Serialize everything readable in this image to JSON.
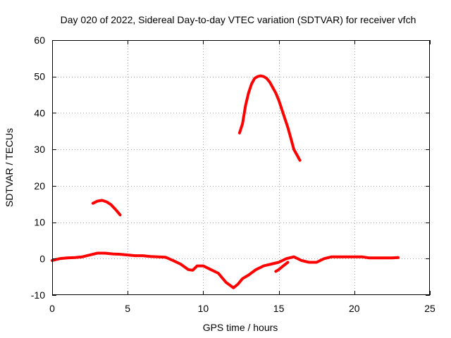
{
  "chart_data": {
    "type": "line",
    "title": "Day 020 of 2022, Sidereal Day-to-day VTEC variation (SDTVAR) for receiver vfch",
    "xlabel": "GPS time / hours",
    "ylabel": "SDTVAR / TECUs",
    "xlim": [
      0,
      25
    ],
    "ylim": [
      -10,
      60
    ],
    "xticks": [
      0,
      5,
      10,
      15,
      20,
      25
    ],
    "yticks": [
      -10,
      0,
      10,
      20,
      30,
      40,
      50,
      60
    ],
    "grid": true,
    "color": "#ff0000",
    "series": [
      {
        "name": "baseline",
        "x": [
          0.0,
          0.5,
          1.0,
          1.5,
          2.0,
          2.5,
          3.0,
          3.5,
          4.0,
          4.5,
          5.0,
          5.5,
          6.0,
          6.5,
          7.0,
          7.5,
          8.0,
          8.5,
          9.0,
          9.3,
          9.6,
          10.0,
          10.5,
          11.0,
          11.5,
          12.0,
          12.3,
          12.6,
          13.0,
          13.5,
          14.0,
          14.5,
          15.0,
          15.5,
          16.0,
          16.5,
          17.0,
          17.5,
          18.0,
          18.5,
          19.0,
          19.5,
          20.0,
          20.5,
          21.0,
          21.5,
          22.0,
          22.5,
          22.9
        ],
        "y": [
          -0.5,
          0.0,
          0.2,
          0.3,
          0.5,
          1.0,
          1.5,
          1.5,
          1.3,
          1.2,
          1.0,
          0.8,
          0.8,
          0.6,
          0.5,
          0.4,
          -0.5,
          -1.5,
          -3.0,
          -3.2,
          -2.0,
          -2.0,
          -3.0,
          -4.0,
          -6.5,
          -8.0,
          -7.0,
          -5.5,
          -4.5,
          -3.0,
          -2.0,
          -1.5,
          -1.0,
          0.0,
          0.5,
          -0.5,
          -1.0,
          -1.0,
          0.0,
          0.5,
          0.5,
          0.5,
          0.5,
          0.5,
          0.2,
          0.2,
          0.2,
          0.2,
          0.3
        ]
      },
      {
        "name": "arc-1",
        "x": [
          2.7,
          3.0,
          3.3,
          3.6,
          3.9,
          4.2,
          4.5
        ],
        "y": [
          15.2,
          15.8,
          16.0,
          15.6,
          14.8,
          13.5,
          12.0
        ]
      },
      {
        "name": "arc-2",
        "x": [
          12.4,
          12.6,
          12.8,
          13.0,
          13.2,
          13.4,
          13.6,
          13.8,
          14.0,
          14.2,
          14.4,
          14.6,
          14.8,
          15.0,
          15.2,
          15.4,
          15.6,
          15.8,
          16.0,
          16.2,
          16.4
        ],
        "y": [
          34.5,
          37.0,
          42.0,
          45.5,
          48.0,
          49.5,
          50.0,
          50.2,
          50.0,
          49.5,
          48.5,
          47.0,
          45.5,
          43.5,
          41.0,
          38.5,
          36.0,
          33.0,
          30.0,
          28.5,
          27.0
        ]
      },
      {
        "name": "dip",
        "x": [
          14.8,
          15.0,
          15.3,
          15.6
        ],
        "y": [
          -3.5,
          -3.0,
          -2.0,
          -1.0
        ]
      }
    ]
  }
}
